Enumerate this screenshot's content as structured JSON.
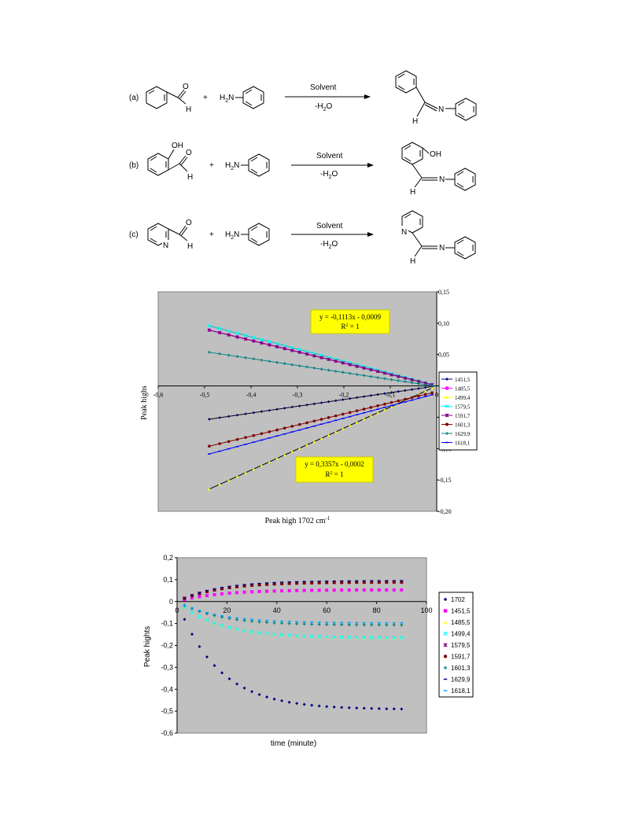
{
  "schemes": [
    {
      "label": "(a)",
      "solvent": "Solvent",
      "water": "-H",
      "water_sub": "2",
      "water_end": "O",
      "amine_h": "H",
      "amine_sub": "2",
      "amine_n": "N",
      "plus": "+",
      "h_reactant": "H",
      "h_product": "H",
      "n_product": "N"
    },
    {
      "label": "(b)",
      "solvent": "Solvent",
      "water": "-H",
      "water_sub": "2",
      "water_end": "O",
      "amine_h": "H",
      "amine_sub": "2",
      "amine_n": "N",
      "plus": "+",
      "h_reactant": "H",
      "h_product": "H",
      "n_product": "N",
      "oh_reactant": "OH",
      "oh_product": "OH"
    },
    {
      "label": "(c)",
      "solvent": "Solvent",
      "water": "-H",
      "water_sub": "2",
      "water_end": "O",
      "amine_h": "H",
      "amine_sub": "2",
      "amine_n": "N",
      "plus": "+",
      "h_reactant": "H",
      "h_product": "H",
      "n_product": "N",
      "ring_n_reactant": "N",
      "ring_n_product": "N"
    }
  ],
  "chart_data": [
    {
      "type": "scatter",
      "xlabel": "Peak high 1702 cm",
      "xlabel_sup": "-1",
      "ylabel": "Peak highs",
      "xlim": [
        -0.6,
        0
      ],
      "ylim": [
        -0.2,
        0.15
      ],
      "x_ticks": [
        "-0,6",
        "-0,5",
        "-0,4",
        "-0,3",
        "-0,2",
        "-0,1",
        "0"
      ],
      "y_ticks": [
        "-0,20",
        "-0,15",
        "-0,10",
        "-0,05",
        "0,00",
        "0,05",
        "0,10",
        "0,15"
      ],
      "legend": "right",
      "annotations": [
        {
          "line1": "y = -0,1113x - 0,0009",
          "line2a": "R",
          "line2sup": "2",
          "line2b": " = 1"
        },
        {
          "line1": "y = 0,3357x - 0,0002",
          "line2a": "R",
          "line2sup": "2",
          "line2b": " = 1"
        }
      ],
      "x_range": [
        -0.49,
        -0.01
      ],
      "series": [
        {
          "name": "1451,5",
          "color": "#000080",
          "marker": "diamond",
          "slope": 0.1085,
          "intercept": 0.0,
          "fit_color": "#000000"
        },
        {
          "name": "1485,5",
          "color": "#ff00ff",
          "marker": "square",
          "slope": -0.1813,
          "intercept": 0.0004,
          "fit_color": "#ff00ff"
        },
        {
          "name": "1499,4",
          "color": "#ffff00",
          "marker": "triangle",
          "slope": 0.3357,
          "intercept": -0.0002,
          "fit_color": "#000000"
        },
        {
          "name": "1579,5",
          "color": "#00ffff",
          "marker": "x",
          "slope": -0.1945,
          "intercept": 0.0004,
          "fit_color": "#00c0c0"
        },
        {
          "name": "1591,7",
          "color": "#800080",
          "marker": "star",
          "slope": -0.1813,
          "intercept": 0.0,
          "fit_color": "#800080"
        },
        {
          "name": "1601,3",
          "color": "#800000",
          "marker": "circle",
          "slope": 0.1775,
          "intercept": -0.0092,
          "fit_color": "#800000"
        },
        {
          "name": "1629,9",
          "color": "#008080",
          "marker": "plus",
          "slope": -0.1113,
          "intercept": -0.0009,
          "fit_color": "#008080"
        },
        {
          "name": "1618,1",
          "color": "#0000ff",
          "marker": "dash",
          "slope": 0.1968,
          "intercept": -0.0122,
          "fit_color": "#0000ff"
        }
      ]
    },
    {
      "type": "scatter",
      "xlabel": "time (minute)",
      "ylabel": "Peak hights",
      "xlim": [
        0,
        100
      ],
      "ylim": [
        -0.6,
        0.2
      ],
      "x_ticks": [
        "0",
        "20",
        "40",
        "60",
        "80",
        "100"
      ],
      "y_ticks": [
        "-0,6",
        "-0,5",
        "-0,4",
        "-0,3",
        "-0,2",
        "-0,1",
        "0",
        "0,1",
        "0,2"
      ],
      "legend": "right",
      "series": [
        {
          "name": "1702",
          "color": "#000080",
          "marker": "diamond",
          "final": -0.49,
          "rate": 0.06
        },
        {
          "name": "1451,5",
          "color": "#ff00ff",
          "marker": "square",
          "final": 0.053,
          "rate": 0.06
        },
        {
          "name": "1485,5",
          "color": "#ffff00",
          "marker": "triangle",
          "final": -0.165,
          "rate": 0.06
        },
        {
          "name": "1499,4",
          "color": "#00ffff",
          "marker": "x",
          "final": -0.165,
          "rate": 0.06
        },
        {
          "name": "1579,5",
          "color": "#800080",
          "marker": "star",
          "final": 0.09,
          "rate": 0.06
        },
        {
          "name": "1591,7",
          "color": "#800000",
          "marker": "circle",
          "final": 0.088,
          "rate": 0.06
        },
        {
          "name": "1601,3",
          "color": "#008080",
          "marker": "plus",
          "final": -0.107,
          "rate": 0.06
        },
        {
          "name": "1629,9",
          "color": "#000080",
          "marker": "dash",
          "final": 0.095,
          "rate": 0.06
        },
        {
          "name": "1618,1",
          "color": "#00aaff",
          "marker": "dash",
          "final": -0.097,
          "rate": 0.06
        }
      ],
      "times": [
        3,
        6,
        9,
        12,
        15,
        18,
        21,
        24,
        27,
        30,
        33,
        36,
        39,
        42,
        45,
        48,
        51,
        54,
        57,
        60,
        63,
        66,
        69,
        72,
        75,
        78,
        81,
        84,
        87,
        90
      ]
    }
  ]
}
